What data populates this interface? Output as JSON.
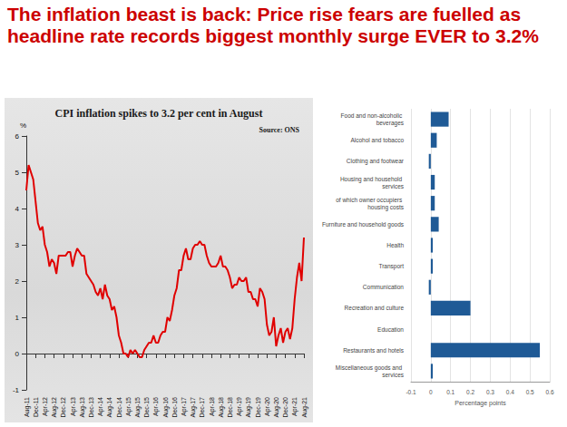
{
  "headline": "The inflation beast is back: Price rise fears are fuelled as headline rate records biggest monthly surge EVER to 3.2%",
  "chart_data": [
    {
      "type": "line",
      "title": "CPI inflation spikes to 3.2 per cent in August",
      "annotations": [
        "Source: ONS"
      ],
      "ylabel": "%",
      "categories": [
        "Aug-11",
        null,
        null,
        null,
        "Dec-11",
        null,
        null,
        null,
        "Apr-12",
        null,
        null,
        null,
        "Aug-12",
        null,
        null,
        null,
        "Dec-12",
        null,
        null,
        null,
        "Apr-13",
        null,
        null,
        null,
        "Aug-13",
        null,
        null,
        null,
        "Dec-13",
        null,
        null,
        null,
        "Apr-14",
        null,
        null,
        null,
        "Aug-14",
        null,
        null,
        null,
        "Dec-14",
        null,
        null,
        null,
        "Apr-15",
        null,
        null,
        null,
        "Aug-15",
        null,
        null,
        null,
        "Dec-15",
        null,
        null,
        null,
        "Apr-16",
        null,
        null,
        null,
        "Aug-16",
        null,
        null,
        null,
        "Dec-16",
        null,
        null,
        null,
        "Apr-17",
        null,
        null,
        null,
        "Aug-17",
        null,
        null,
        null,
        "Dec-17",
        null,
        null,
        null,
        "Apr-18",
        null,
        null,
        null,
        "Aug-18",
        null,
        null,
        null,
        "Dec-18",
        null,
        null,
        null,
        "Apr-19",
        null,
        null,
        null,
        "Aug-19",
        null,
        null,
        null,
        "Dec-19",
        null,
        null,
        null,
        "Apr-20",
        null,
        null,
        null,
        "Aug-20",
        null,
        null,
        null,
        "Dec-20",
        null,
        null,
        null,
        "Apr-21",
        null,
        null,
        null,
        "Aug-21"
      ],
      "values": [
        4.5,
        5.2,
        5.0,
        4.8,
        4.2,
        3.6,
        3.4,
        3.5,
        3.0,
        2.8,
        2.4,
        2.6,
        2.5,
        2.2,
        2.7,
        2.7,
        2.7,
        2.7,
        2.8,
        2.8,
        2.4,
        2.7,
        2.9,
        2.8,
        2.7,
        2.7,
        2.2,
        2.1,
        2.0,
        1.9,
        1.7,
        1.6,
        1.8,
        1.5,
        1.9,
        1.6,
        1.5,
        1.2,
        1.3,
        1.0,
        0.5,
        0.3,
        0.0,
        0.0,
        -0.1,
        0.1,
        0.0,
        0.1,
        0.0,
        -0.1,
        -0.1,
        0.1,
        0.2,
        0.3,
        0.3,
        0.5,
        0.3,
        0.3,
        0.5,
        0.6,
        0.6,
        1.0,
        0.9,
        1.2,
        1.6,
        1.8,
        2.3,
        2.3,
        2.7,
        2.9,
        2.6,
        2.6,
        2.9,
        3.0,
        3.0,
        3.1,
        3.0,
        3.0,
        2.7,
        2.5,
        2.4,
        2.4,
        2.4,
        2.5,
        2.7,
        2.4,
        2.4,
        2.3,
        2.1,
        1.8,
        1.9,
        1.9,
        2.1,
        2.0,
        2.0,
        2.1,
        1.7,
        1.7,
        1.5,
        1.5,
        1.3,
        1.8,
        1.7,
        1.5,
        0.8,
        0.5,
        0.6,
        1.0,
        0.2,
        0.5,
        0.7,
        0.3,
        0.6,
        0.7,
        0.4,
        0.7,
        1.5,
        2.1,
        2.5,
        2.0,
        3.2
      ],
      "color": "#e00000",
      "ylim": [
        -1,
        6
      ],
      "yticks": [
        -1,
        0,
        1,
        2,
        3,
        4,
        5,
        6
      ],
      "grid": false
    },
    {
      "type": "bar",
      "orientation": "horizontal",
      "xlabel": "Percentage points",
      "categories": [
        "Food and non-alcoholic beverages",
        "Alcohol and tobacco",
        "Clothing and footwear",
        "Housing and household services",
        "of which owner occupiers housing costs",
        "Furniture and household goods",
        "Health",
        "Transport",
        "Communication",
        "Recreation and culture",
        "Education",
        "Restaurants and hotels",
        "Miscellaneous goods and services"
      ],
      "values": [
        0.09,
        0.03,
        -0.01,
        0.02,
        0.02,
        0.04,
        0.01,
        0.01,
        -0.01,
        0.2,
        0.0,
        0.55,
        0.01
      ],
      "color": "#1f5a96",
      "xlim": [
        -0.1,
        0.6
      ],
      "xticks": [
        -0.1,
        0,
        0.1,
        0.2,
        0.3,
        0.4,
        0.5,
        0.6
      ],
      "grid": true
    }
  ]
}
